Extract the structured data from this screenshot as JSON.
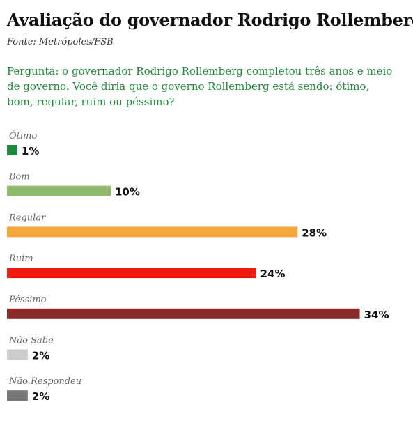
{
  "title": "Avaliação do governador Rodrigo Rollemberg",
  "source": "Fonte: Metrópoles/FSB",
  "question": "Pergunta: o governador Rodrigo Rollemberg completou três anos e meio de governo. Você diria que o governo Rollemberg está sendo: ótimo, bom, regular, ruim ou péssimo?",
  "chart_data": {
    "type": "bar",
    "orientation": "horizontal",
    "categories": [
      "Ótimo",
      "Bom",
      "Regular",
      "Ruim",
      "Péssimo",
      "Não Sabe",
      "Não Respondeu"
    ],
    "values": [
      1,
      10,
      28,
      24,
      34,
      2,
      2
    ],
    "value_labels": [
      "1%",
      "10%",
      "28%",
      "24%",
      "34%",
      "2%",
      "2%"
    ],
    "colors": [
      "#1a8a3c",
      "#8fb96b",
      "#f5a73b",
      "#ee1c0f",
      "#8b2a2a",
      "#cccccc",
      "#777777"
    ],
    "unit": "%",
    "grid": false,
    "legend": "none"
  }
}
